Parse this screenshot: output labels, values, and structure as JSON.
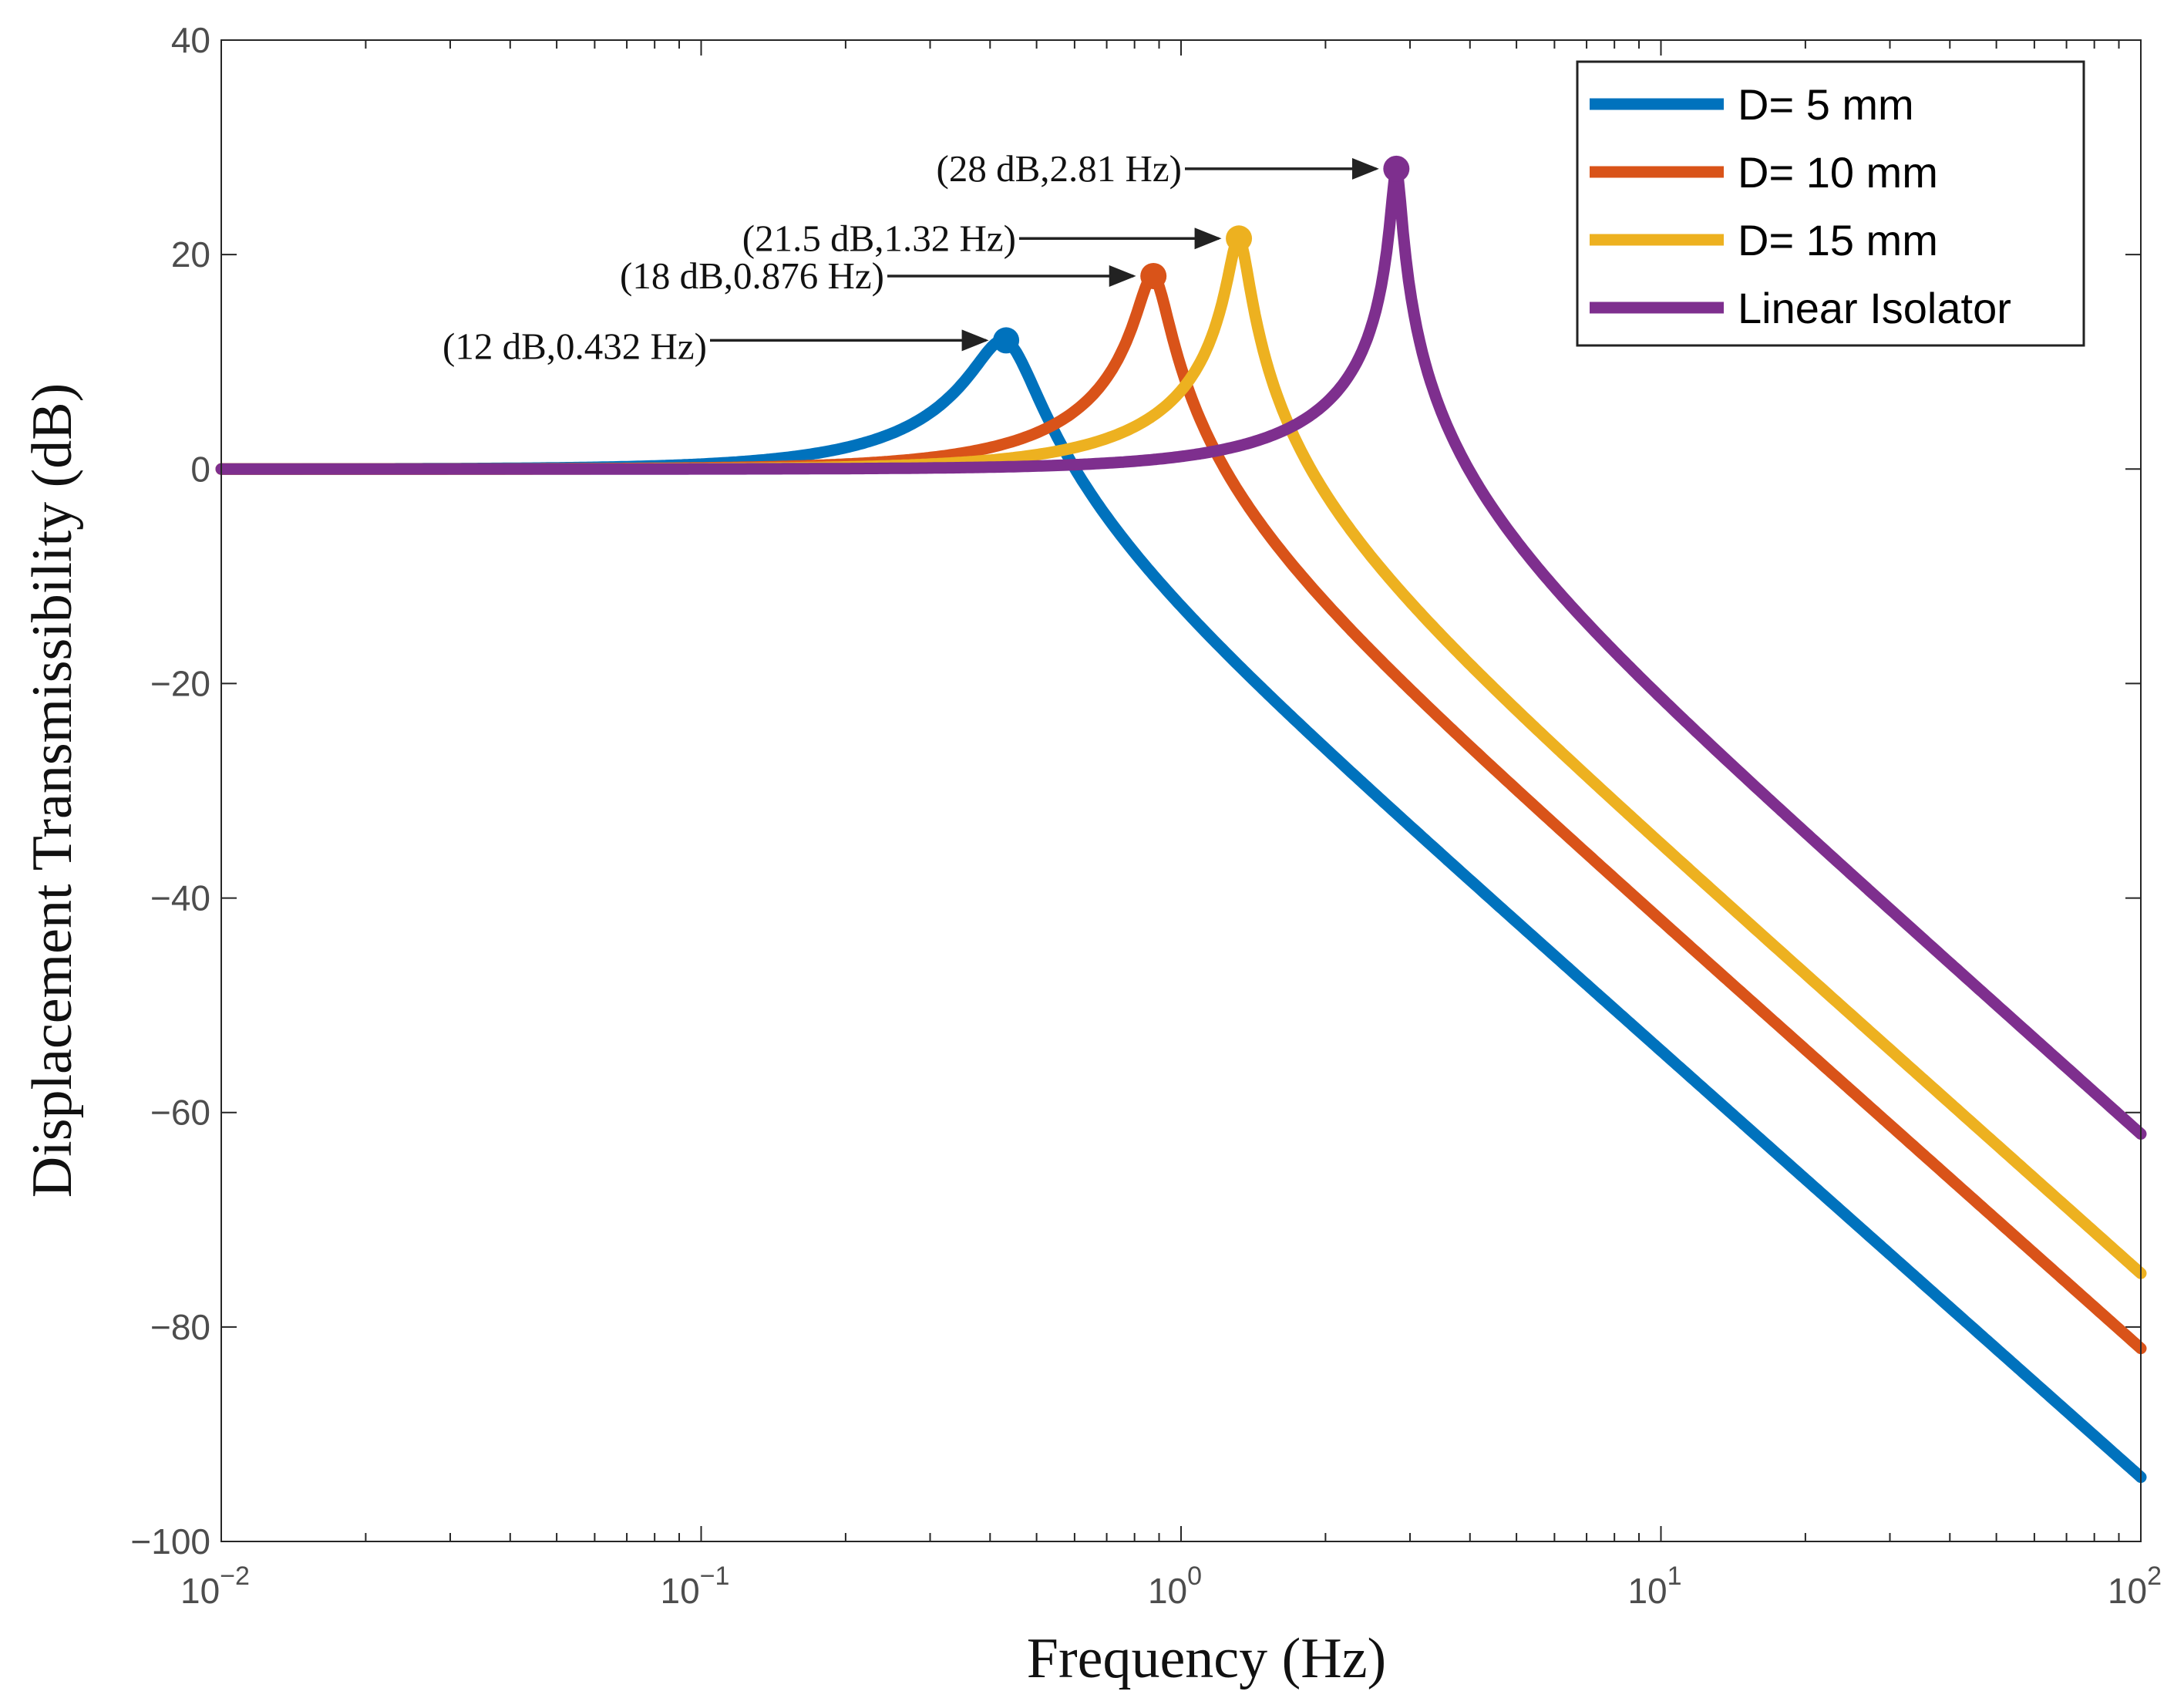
{
  "chart_data": {
    "type": "line",
    "xscale": "log",
    "xlim": [
      0.01,
      100
    ],
    "ylim": [
      -100,
      40
    ],
    "xlabel": "Frequency  (Hz)",
    "ylabel": "Displacement Transmissibility (dB)",
    "grid": false,
    "legend_position": "top-right",
    "y_ticks": [
      {
        "value": 40,
        "label": "40"
      },
      {
        "value": 20,
        "label": "20"
      },
      {
        "value": 0,
        "label": "0"
      },
      {
        "value": -20,
        "label": "−20"
      },
      {
        "value": -40,
        "label": "−40"
      },
      {
        "value": -60,
        "label": "−60"
      },
      {
        "value": -80,
        "label": "−80"
      },
      {
        "value": -100,
        "label": "−100"
      }
    ],
    "x_ticks": [
      {
        "value": 0.01,
        "base": "10",
        "exp": "−2"
      },
      {
        "value": 0.1,
        "base": "10",
        "exp": "−1"
      },
      {
        "value": 1,
        "base": "10",
        "exp": "0"
      },
      {
        "value": 10,
        "base": "10",
        "exp": "1"
      },
      {
        "value": 100,
        "base": "10",
        "exp": "2"
      }
    ],
    "series": [
      {
        "name": "D= 5 mm",
        "color": "#0072BD",
        "peak_freq": 0.432,
        "peak_db": 12,
        "end_db": -94
      },
      {
        "name": "D= 10 mm",
        "color": "#D95319",
        "peak_freq": 0.876,
        "peak_db": 18,
        "end_db": -82
      },
      {
        "name": "D= 15 mm",
        "color": "#EDB120",
        "peak_freq": 1.32,
        "peak_db": 21.5,
        "end_db": -75
      },
      {
        "name": "Linear Isolator",
        "color": "#7E2F8E",
        "peak_freq": 2.81,
        "peak_db": 28,
        "end_db": -62
      }
    ],
    "annotations": [
      {
        "text": "(12 dB,0.432 Hz)",
        "x": 0.432,
        "y": 12
      },
      {
        "text": "(18 dB,0.876 Hz)",
        "x": 0.876,
        "y": 18
      },
      {
        "text": "(21.5 dB,1.32 Hz)",
        "x": 1.32,
        "y": 21.5
      },
      {
        "text": "(28 dB,2.81 Hz)",
        "x": 2.81,
        "y": 28
      }
    ]
  }
}
